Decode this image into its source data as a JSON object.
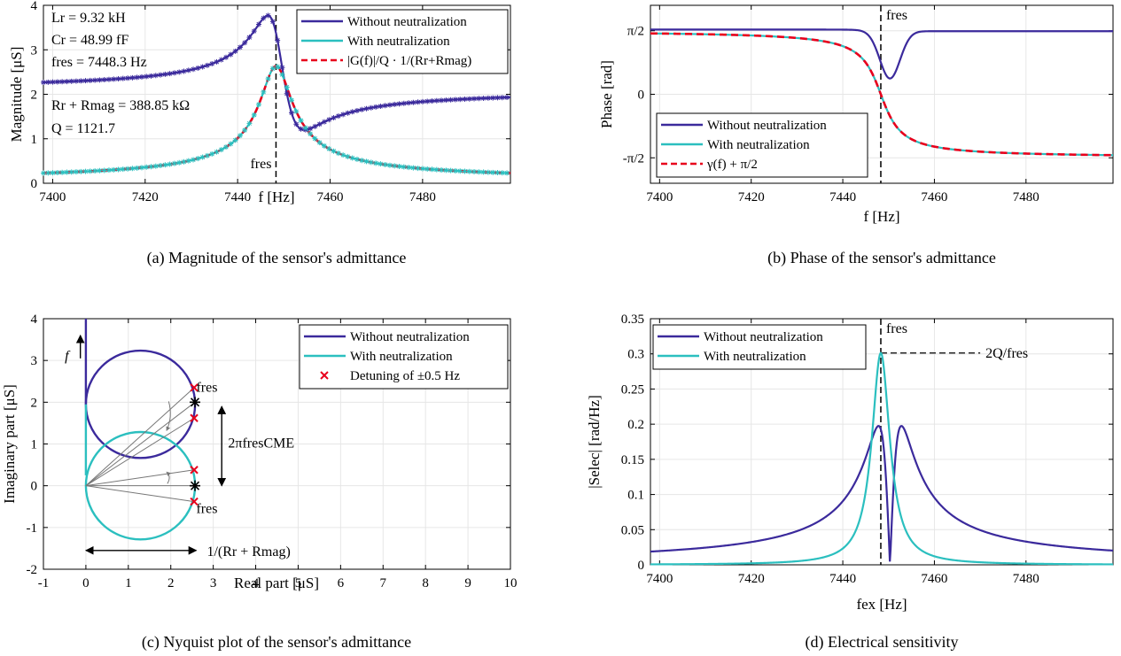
{
  "colors": {
    "without": "#3b2a9c",
    "with": "#2bbfbf",
    "fit": "#e8001c",
    "cross": "#e8001c",
    "grid": "#e6e6e6",
    "arrow": "#777777"
  },
  "panels": {
    "a": {
      "caption": "(a) Magnitude of the sensor's admittance",
      "ylabel": "Magnitude [μS]",
      "xlabel": "f [Hz]",
      "legend": [
        "Without neutralization",
        "With neutralization",
        "|G(f)|/Q · 1/(Rr+Rmag)"
      ],
      "annot": {
        "Lr": "Lr = 9.32 kH",
        "Cr": "Cr = 48.99 fF",
        "fres": "fres = 7448.3 Hz",
        "R": "Rr + Rmag = 388.85 kΩ",
        "Q": "Q = 1121.7",
        "fres_marker": "fres"
      }
    },
    "b": {
      "caption": "(b) Phase of the sensor's admittance",
      "ylabel": "Phase [rad]",
      "xlabel": "f [Hz]",
      "legend": [
        "Without neutralization",
        "With neutralization",
        "γ(f) + π/2"
      ],
      "fres_marker": "fres"
    },
    "c": {
      "caption": "(c) Nyquist plot of the sensor's admittance",
      "ylabel": "Imaginary part [μS]",
      "xlabel": "Real part [μS]",
      "legend": [
        "Without neutralization",
        "With neutralization",
        "Detuning of ±0.5 Hz"
      ],
      "annot": {
        "f": "f",
        "fres_top": "fres",
        "fres_bottom": "fres",
        "cme": "2πfresCME",
        "rr": "1/(Rr + Rmag)"
      }
    },
    "d": {
      "caption": "(d) Electrical sensitivity",
      "ylabel": "|Selec| [rad/Hz]",
      "xlabel": "fex [Hz]",
      "legend": [
        "Without neutralization",
        "With neutralization"
      ],
      "annot": {
        "fres": "fres",
        "twoq": "2Q/fres"
      }
    }
  },
  "chart_data": [
    {
      "type": "line",
      "panel": "a",
      "xlim": [
        7398,
        7499
      ],
      "ylim": [
        0,
        4
      ],
      "xticks": [
        7400,
        7420,
        7440,
        7460,
        7480
      ],
      "yticks": [
        0,
        1,
        2,
        3,
        4
      ],
      "grid": true,
      "legend_position": "top-right",
      "vline": 7448.3,
      "model": {
        "fres": 7448.3,
        "Q": 1121.7,
        "peak_us": 2.5717,
        "offset_us": 0.0,
        "shift_without_us": 1.9
      },
      "series": [
        {
          "name": "Without neutralization",
          "x": [
            7400,
            7420,
            7440,
            7445,
            7447,
            7448.3,
            7450,
            7452,
            7455,
            7470,
            7498
          ],
          "y": [
            2.1,
            2.2,
            2.7,
            3.3,
            3.6,
            3.45,
            2.2,
            1.35,
            1.1,
            1.55,
            1.8
          ]
        },
        {
          "name": "With neutralization",
          "x": [
            7400,
            7420,
            7440,
            7445,
            7448.3,
            7452,
            7460,
            7480,
            7498
          ],
          "y": [
            0.17,
            0.28,
            0.85,
            1.6,
            2.57,
            1.6,
            0.55,
            0.22,
            0.15
          ]
        },
        {
          "name": "|G(f)|/Q · 1/(Rr+Rmag)",
          "x": [
            7400,
            7420,
            7440,
            7445,
            7448.3,
            7452,
            7460,
            7480,
            7498
          ],
          "y": [
            0.17,
            0.28,
            0.85,
            1.6,
            2.57,
            1.6,
            0.55,
            0.22,
            0.15
          ]
        }
      ]
    },
    {
      "type": "line",
      "panel": "b",
      "xlim": [
        7398,
        7499
      ],
      "ylim": [
        -2.2,
        2.2
      ],
      "xticks": [
        7400,
        7420,
        7440,
        7460,
        7480
      ],
      "yticks": [
        -1.5708,
        0,
        1.5708
      ],
      "yticklabels": [
        "-π/2",
        "0",
        "π/2"
      ],
      "grid": true,
      "legend_position": "bottom-left",
      "vline": 7448.3,
      "series": [
        {
          "name": "Without neutralization",
          "x": [
            7400,
            7430,
            7444,
            7448,
            7450,
            7452,
            7456,
            7470,
            7498
          ],
          "y": [
            1.58,
            1.55,
            1.35,
            0.75,
            0.4,
            0.6,
            1.25,
            1.52,
            1.57
          ]
        },
        {
          "name": "With neutralization",
          "x": [
            7400,
            7430,
            7444,
            7448.3,
            7452,
            7460,
            7480,
            7498
          ],
          "y": [
            1.56,
            1.45,
            0.9,
            0,
            -0.9,
            -1.4,
            -1.53,
            -1.56
          ]
        },
        {
          "name": "γ(f) + π/2",
          "x": [
            7400,
            7430,
            7444,
            7448.3,
            7452,
            7460,
            7480,
            7498
          ],
          "y": [
            1.56,
            1.45,
            0.9,
            0,
            -0.9,
            -1.4,
            -1.53,
            -1.56
          ]
        }
      ]
    },
    {
      "type": "line",
      "panel": "c",
      "xlim": [
        -1,
        10
      ],
      "ylim": [
        -2,
        4
      ],
      "xticks": [
        -1,
        0,
        1,
        2,
        3,
        4,
        5,
        6,
        7,
        8,
        9,
        10
      ],
      "yticks": [
        -2,
        -1,
        0,
        1,
        2,
        3,
        4
      ],
      "grid": true,
      "legend_position": "top-right",
      "series": [
        {
          "name": "Without neutralization",
          "center": [
            1.286,
            1.95
          ],
          "radius": 1.286
        },
        {
          "name": "With neutralization",
          "center": [
            1.286,
            0.0
          ],
          "radius": 1.286
        },
        {
          "name": "Detuning of ±0.5 Hz",
          "x": [
            2.55,
            2.55,
            2.55,
            2.55
          ],
          "y": [
            2.35,
            1.62,
            0.38,
            -0.38
          ]
        }
      ]
    },
    {
      "type": "line",
      "panel": "d",
      "xlim": [
        7398,
        7499
      ],
      "ylim": [
        0,
        0.35
      ],
      "xticks": [
        7400,
        7420,
        7440,
        7460,
        7480
      ],
      "yticks": [
        0,
        0.05,
        0.1,
        0.15,
        0.2,
        0.25,
        0.3,
        0.35
      ],
      "grid": true,
      "legend_position": "top-left",
      "vline": 7448.3,
      "hline": 0.3012,
      "series": [
        {
          "name": "Without neutralization",
          "x": [
            7400,
            7440,
            7445,
            7448,
            7450.3,
            7453,
            7456,
            7470,
            7498
          ],
          "y": [
            0.001,
            0.02,
            0.08,
            0.195,
            0,
            0.195,
            0.08,
            0.01,
            0.001
          ]
        },
        {
          "name": "With neutralization",
          "x": [
            7400,
            7440,
            7445,
            7448.3,
            7452,
            7460,
            7480,
            7498
          ],
          "y": [
            0.002,
            0.04,
            0.15,
            0.3012,
            0.15,
            0.03,
            0.005,
            0.002
          ]
        }
      ]
    }
  ]
}
